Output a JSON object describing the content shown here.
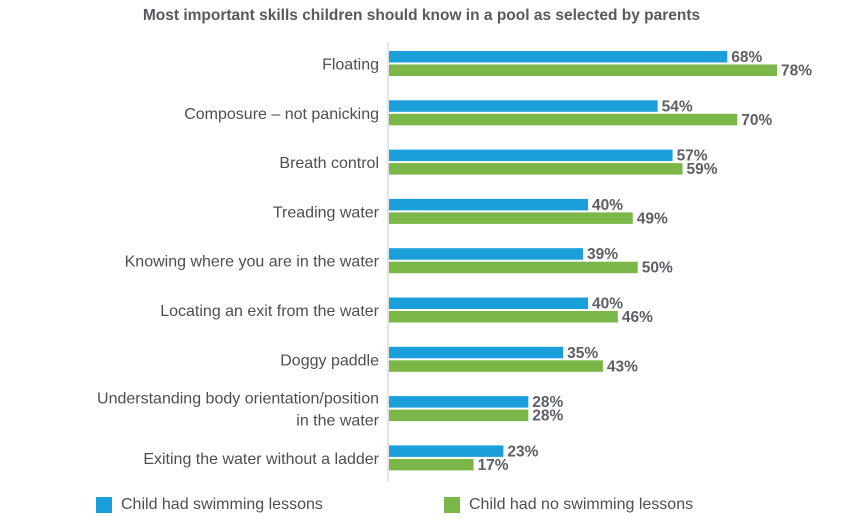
{
  "chart_data": {
    "type": "bar",
    "orientation": "horizontal",
    "title": "Most important skills children should know in a pool as selected by parents",
    "categories": [
      "Floating",
      "Composure – not panicking",
      "Breath control",
      "Treading water",
      "Knowing where you are in the water",
      "Locating an exit from the water",
      "Doggy paddle",
      "Understanding body orientation/position in the water",
      "Exiting the water without a ladder"
    ],
    "category_lines": [
      [
        "Floating"
      ],
      [
        "Composure – not panicking"
      ],
      [
        "Breath control"
      ],
      [
        "Treading water"
      ],
      [
        "Knowing where you are in the water"
      ],
      [
        "Locating an exit from the water"
      ],
      [
        "Doggy paddle"
      ],
      [
        "Understanding body orientation/position",
        "in the water"
      ],
      [
        "Exiting the water without a ladder"
      ]
    ],
    "series": [
      {
        "name": "Child had swimming lessons",
        "color": "#1a9fdb",
        "values": [
          68,
          54,
          57,
          40,
          39,
          40,
          35,
          28,
          23
        ]
      },
      {
        "name": "Child had no swimming lessons",
        "color": "#7ab648",
        "values": [
          78,
          70,
          59,
          49,
          50,
          46,
          43,
          28,
          17
        ]
      }
    ],
    "value_suffix": "%",
    "xlim": [
      0,
      80
    ],
    "grid": false,
    "legend_position": "bottom"
  }
}
